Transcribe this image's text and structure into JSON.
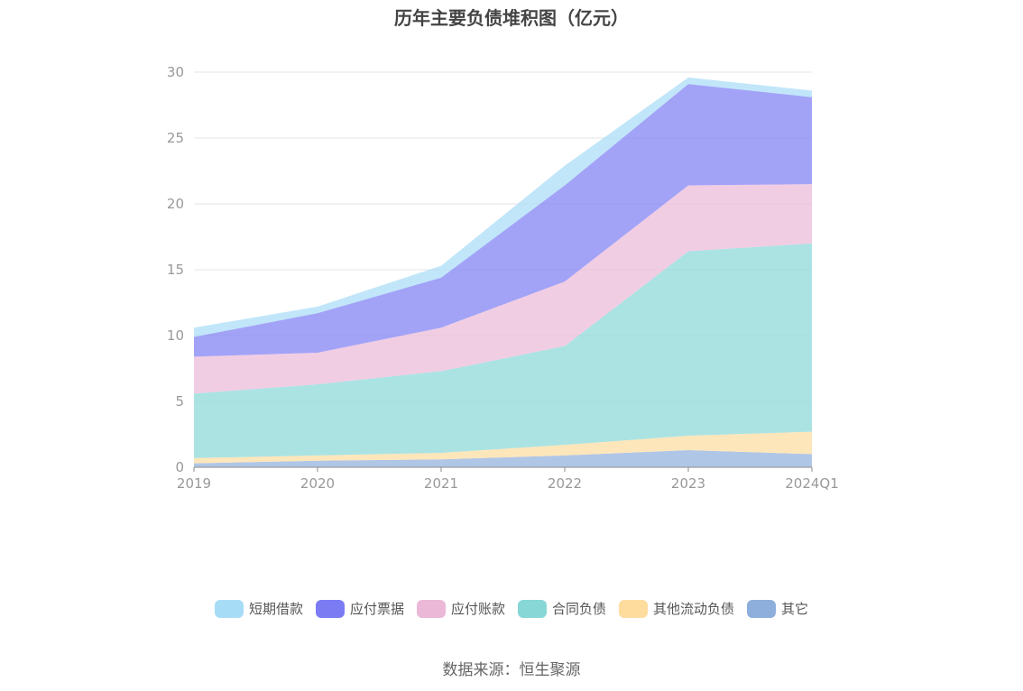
{
  "chart_data": {
    "type": "area",
    "stacked": true,
    "title": "历年主要负债堆积图（亿元）",
    "categories": [
      "2019",
      "2020",
      "2021",
      "2022",
      "2023",
      "2024Q1"
    ],
    "ylim": [
      0,
      30
    ],
    "yticks": [
      0,
      5,
      10,
      15,
      20,
      25,
      30
    ],
    "grid": true,
    "legend_position": "bottom",
    "series": [
      {
        "name": "其它",
        "color": "#8eaedc",
        "values": [
          0.3,
          0.5,
          0.6,
          0.9,
          1.3,
          1.0
        ]
      },
      {
        "name": "其他流动负债",
        "color": "#fddc9e",
        "values": [
          0.4,
          0.4,
          0.5,
          0.8,
          1.1,
          1.7
        ]
      },
      {
        "name": "合同负债",
        "color": "#87d7d7",
        "values": [
          4.9,
          5.4,
          6.2,
          7.5,
          14.0,
          14.3
        ]
      },
      {
        "name": "应付账款",
        "color": "#ebb8d8",
        "values": [
          2.8,
          2.4,
          3.3,
          4.9,
          5.0,
          4.5
        ]
      },
      {
        "name": "应付票据",
        "color": "#7b7cf4",
        "values": [
          1.5,
          3.0,
          3.8,
          7.3,
          7.7,
          6.6
        ]
      },
      {
        "name": "短期借款",
        "color": "#a7dcf7",
        "values": [
          0.7,
          0.5,
          0.9,
          1.5,
          0.5,
          0.5
        ]
      }
    ]
  },
  "legend_order": [
    "短期借款",
    "应付票据",
    "应付账款",
    "合同负债",
    "其他流动负债",
    "其它"
  ],
  "source": "数据来源：恒生聚源"
}
